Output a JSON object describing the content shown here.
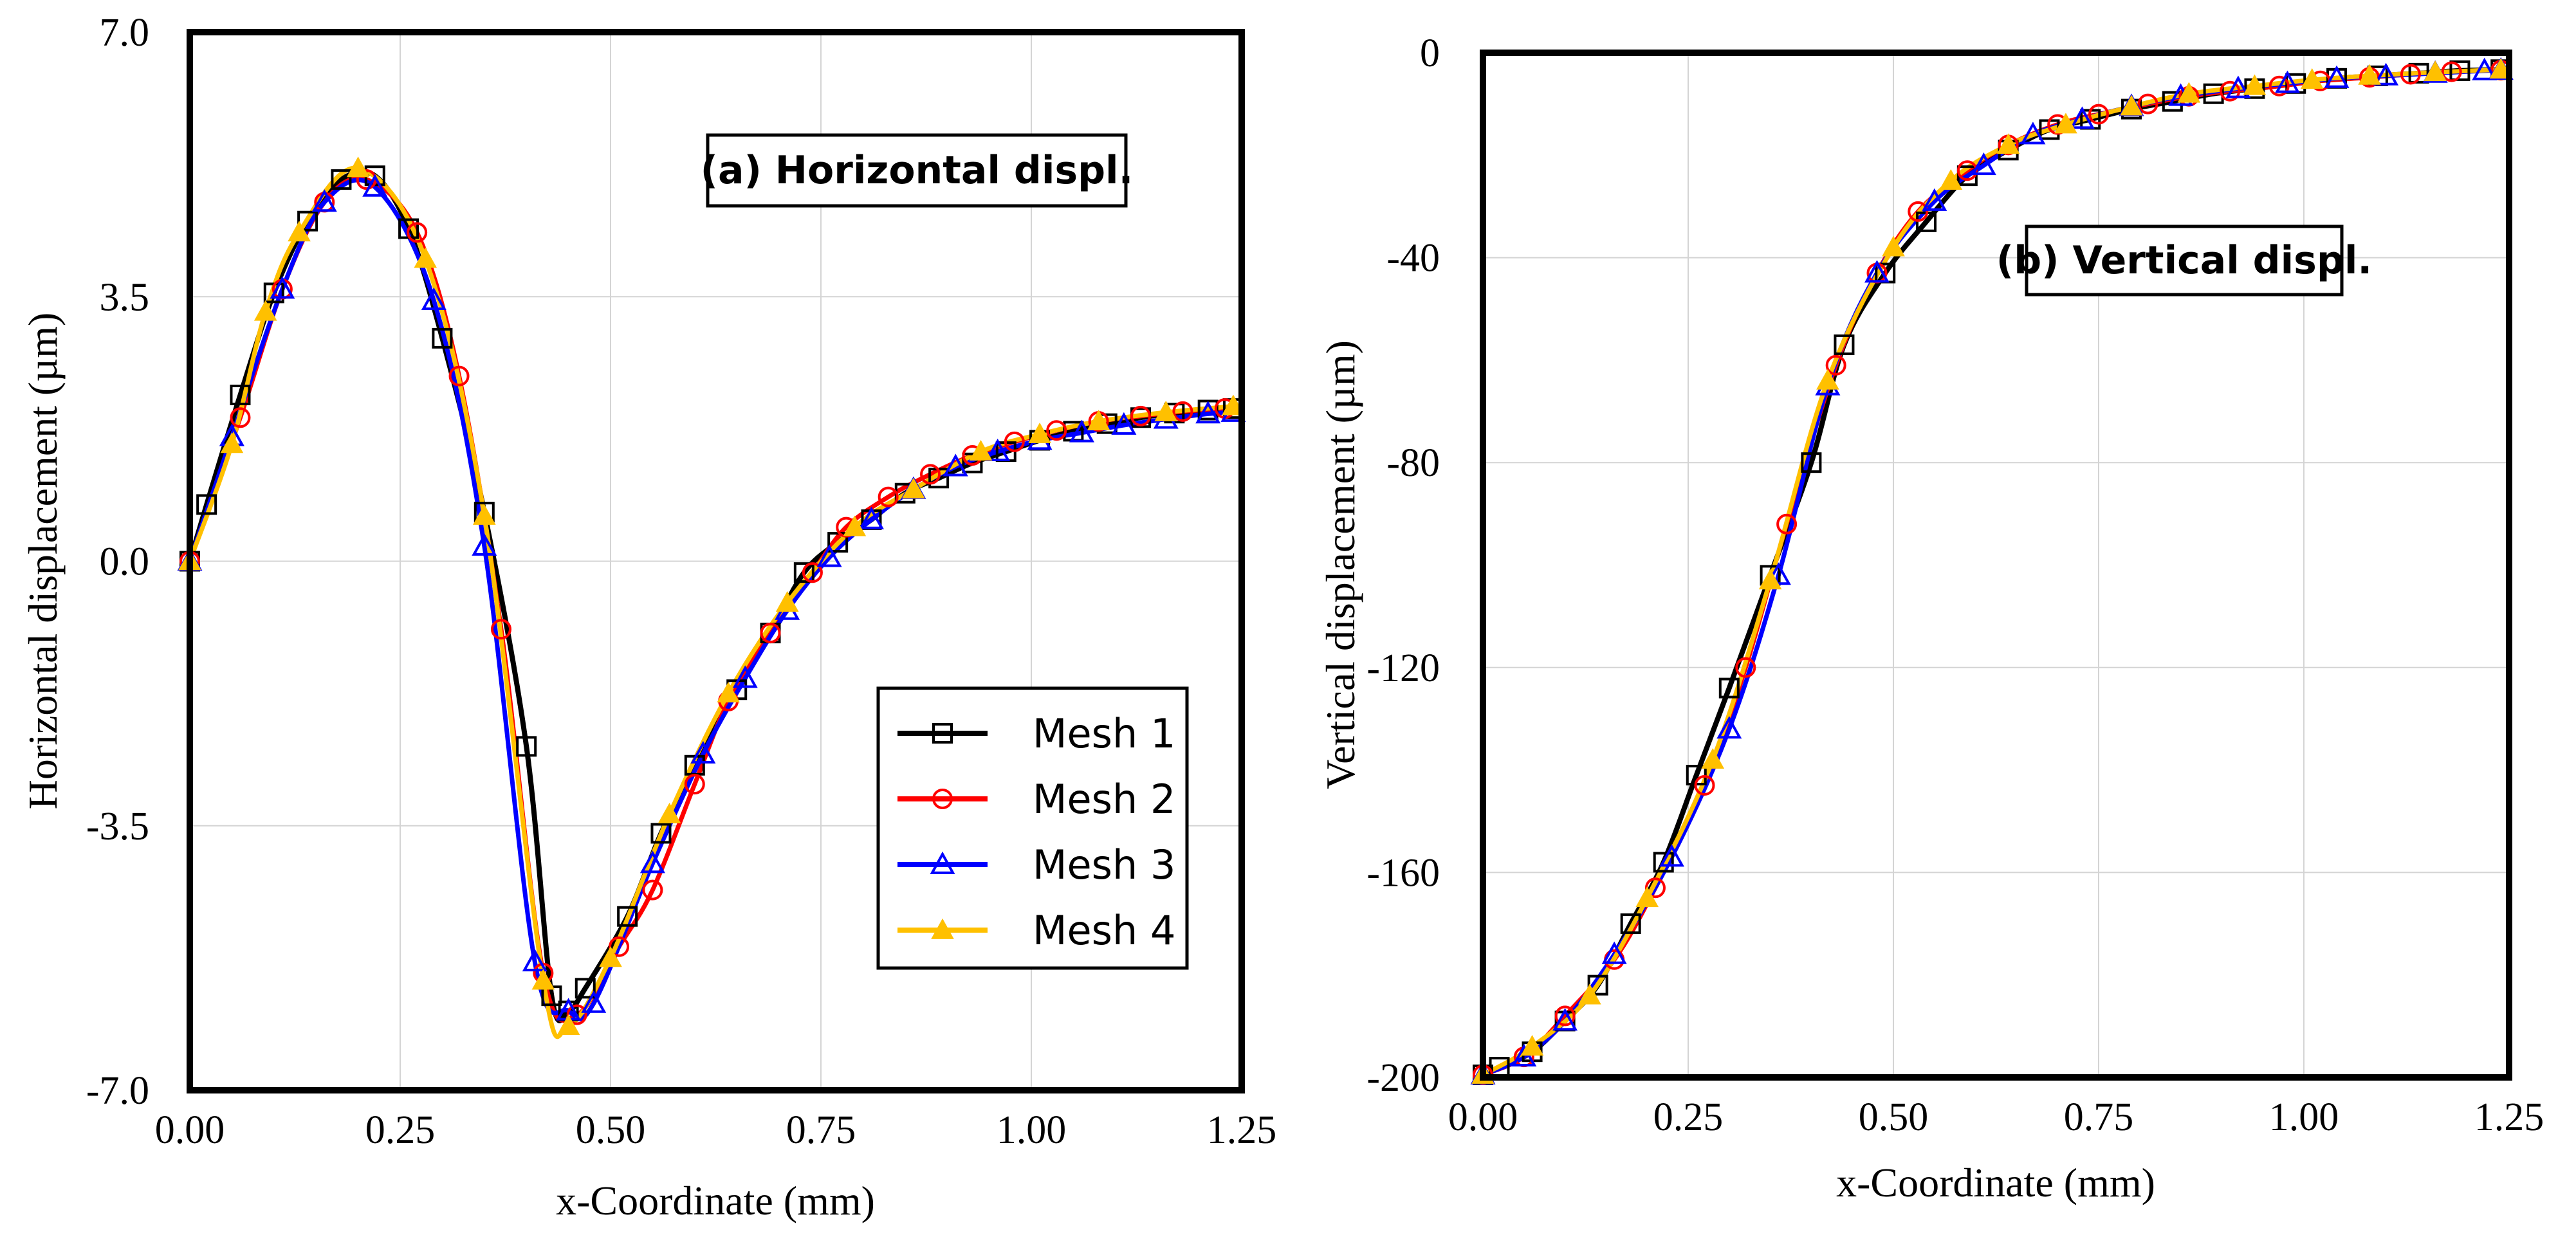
{
  "chart_data": [
    {
      "type": "line",
      "panel_label": "(a) Horizontal displ.",
      "xlabel": "x-Coordinate (mm)",
      "ylabel": "Horizontal displacement (µm)",
      "xlim": [
        0,
        1.25
      ],
      "ylim": [
        -7,
        7
      ],
      "xticks": [
        0,
        0.25,
        0.5,
        0.75,
        1,
        1.25
      ],
      "xtick_labels": [
        "0.00",
        "0.25",
        "0.50",
        "0.75",
        "1.00",
        "1.25"
      ],
      "yticks": [
        -7,
        -3.5,
        0,
        3.5,
        7
      ],
      "ytick_labels": [
        "-7.0",
        "-3.5",
        "0.0",
        "3.5",
        "7.0"
      ],
      "grid": true,
      "legend": {
        "position": "bottom-right"
      },
      "series": [
        {
          "name": "Mesh 1",
          "color": "#000000",
          "marker": "square",
          "x": [
            0,
            0.02,
            0.06,
            0.1,
            0.14,
            0.18,
            0.22,
            0.26,
            0.3,
            0.35,
            0.4,
            0.43,
            0.45,
            0.47,
            0.52,
            0.56,
            0.6,
            0.65,
            0.69,
            0.73,
            0.77,
            0.81,
            0.85,
            0.89,
            0.93,
            0.97,
            1.01,
            1.05,
            1.09,
            1.13,
            1.17,
            1.21,
            1.24
          ],
          "y": [
            0,
            0.75,
            2.2,
            3.55,
            4.5,
            5.05,
            5.1,
            4.4,
            2.95,
            0.65,
            -2.45,
            -5.75,
            -5.95,
            -5.65,
            -4.7,
            -3.6,
            -2.7,
            -1.7,
            -0.95,
            -0.15,
            0.25,
            0.55,
            0.9,
            1.1,
            1.3,
            1.45,
            1.6,
            1.72,
            1.82,
            1.9,
            1.96,
            2.0,
            2.02
          ]
        },
        {
          "name": "Mesh 2",
          "color": "#ff0000",
          "marker": "circle",
          "x": [
            0,
            0.06,
            0.11,
            0.16,
            0.21,
            0.27,
            0.32,
            0.37,
            0.42,
            0.46,
            0.51,
            0.55,
            0.6,
            0.64,
            0.69,
            0.74,
            0.78,
            0.83,
            0.88,
            0.93,
            0.98,
            1.03,
            1.08,
            1.13,
            1.18,
            1.23
          ],
          "y": [
            0,
            1.9,
            3.6,
            4.75,
            5.05,
            4.35,
            2.45,
            -0.9,
            -5.45,
            -6.0,
            -5.1,
            -4.35,
            -2.95,
            -1.85,
            -0.95,
            -0.15,
            0.45,
            0.85,
            1.15,
            1.4,
            1.58,
            1.73,
            1.85,
            1.92,
            1.98,
            2.02
          ]
        },
        {
          "name": "Mesh 3",
          "color": "#0000ff",
          "marker": "triangle",
          "x": [
            0,
            0.05,
            0.11,
            0.16,
            0.22,
            0.29,
            0.35,
            0.41,
            0.45,
            0.48,
            0.55,
            0.61,
            0.66,
            0.71,
            0.76,
            0.81,
            0.86,
            0.91,
            0.96,
            1.01,
            1.06,
            1.11,
            1.16,
            1.21,
            1.24
          ],
          "y": [
            0,
            1.65,
            3.6,
            4.75,
            4.95,
            3.45,
            0.2,
            -5.3,
            -5.95,
            -5.85,
            -4.0,
            -2.55,
            -1.55,
            -0.65,
            0.05,
            0.55,
            0.95,
            1.25,
            1.45,
            1.6,
            1.7,
            1.8,
            1.88,
            1.95,
            1.97
          ]
        },
        {
          "name": "Mesh 4",
          "color": "#ffc000",
          "marker": "triangle-filled",
          "x": [
            0,
            0.05,
            0.09,
            0.13,
            0.2,
            0.28,
            0.35,
            0.42,
            0.45,
            0.5,
            0.57,
            0.64,
            0.71,
            0.79,
            0.86,
            0.94,
            1.01,
            1.08,
            1.16,
            1.24
          ],
          "y": [
            0,
            1.55,
            3.3,
            4.35,
            5.2,
            4.0,
            0.6,
            -5.55,
            -6.15,
            -5.25,
            -3.35,
            -1.75,
            -0.55,
            0.45,
            0.95,
            1.45,
            1.68,
            1.85,
            1.97,
            2.05
          ]
        }
      ]
    },
    {
      "type": "line",
      "panel_label": "(b) Vertical displ.",
      "xlabel": "x-Coordinate (mm)",
      "ylabel": "Vertical displacement (µm)",
      "xlim": [
        0,
        1.25
      ],
      "ylim": [
        -200,
        0
      ],
      "xticks": [
        0,
        0.25,
        0.5,
        0.75,
        1,
        1.25
      ],
      "xtick_labels": [
        "0.00",
        "0.25",
        "0.50",
        "0.75",
        "1.00",
        "1.25"
      ],
      "yticks": [
        -200,
        -160,
        -120,
        -80,
        -40,
        0
      ],
      "ytick_labels": [
        "-200",
        "-160",
        "-120",
        "-80",
        "-40",
        "0"
      ],
      "grid": true,
      "series": [
        {
          "name": "Mesh 1",
          "color": "#000000",
          "marker": "square",
          "x": [
            0,
            0.02,
            0.06,
            0.1,
            0.14,
            0.18,
            0.22,
            0.26,
            0.3,
            0.35,
            0.4,
            0.44,
            0.49,
            0.54,
            0.59,
            0.64,
            0.69,
            0.74,
            0.79,
            0.84,
            0.89,
            0.94,
            0.99,
            1.04,
            1.09,
            1.14,
            1.19,
            1.24
          ],
          "y": [
            -199.5,
            -198,
            -195,
            -189,
            -182,
            -170,
            -158,
            -141,
            -124,
            -102,
            -80,
            -57,
            -43,
            -33,
            -24,
            -19,
            -15,
            -13,
            -11,
            -9.5,
            -8,
            -7,
            -6,
            -5,
            -4.5,
            -4,
            -3.5,
            -3.3
          ]
        },
        {
          "name": "Mesh 2",
          "color": "#ff0000",
          "marker": "circle",
          "x": [
            0,
            0.05,
            0.1,
            0.16,
            0.21,
            0.27,
            0.32,
            0.37,
            0.43,
            0.48,
            0.53,
            0.59,
            0.64,
            0.7,
            0.75,
            0.81,
            0.86,
            0.91,
            0.97,
            1.02,
            1.08,
            1.13,
            1.18,
            1.24
          ],
          "y": [
            -199.5,
            -196,
            -188,
            -177,
            -163,
            -143,
            -120,
            -92,
            -61,
            -43,
            -31,
            -23,
            -18,
            -14,
            -12,
            -10,
            -8.5,
            -7.5,
            -6.5,
            -5.5,
            -4.8,
            -4.2,
            -3.7,
            -3.4
          ]
        },
        {
          "name": "Mesh 3",
          "color": "#0000ff",
          "marker": "triangle",
          "x": [
            0,
            0.05,
            0.1,
            0.16,
            0.23,
            0.3,
            0.36,
            0.42,
            0.48,
            0.55,
            0.61,
            0.67,
            0.73,
            0.79,
            0.85,
            0.92,
            0.98,
            1.04,
            1.1,
            1.16,
            1.22,
            1.24
          ],
          "y": [
            -199.5,
            -196,
            -189,
            -176,
            -157,
            -132,
            -102,
            -65,
            -43,
            -29,
            -22,
            -16,
            -13,
            -10.5,
            -8.5,
            -7,
            -6,
            -5,
            -4.5,
            -4,
            -3.5,
            -3.4
          ]
        },
        {
          "name": "Mesh 4",
          "color": "#ffc000",
          "marker": "triangle-filled",
          "x": [
            0,
            0.06,
            0.13,
            0.2,
            0.28,
            0.35,
            0.42,
            0.5,
            0.57,
            0.64,
            0.71,
            0.79,
            0.86,
            0.94,
            1.01,
            1.08,
            1.16,
            1.24
          ],
          "y": [
            -199.5,
            -194,
            -184,
            -165,
            -138,
            -103,
            -64,
            -38,
            -25,
            -18,
            -14,
            -10.5,
            -8,
            -6.5,
            -5.3,
            -4.5,
            -3.8,
            -3.3
          ]
        }
      ]
    }
  ]
}
